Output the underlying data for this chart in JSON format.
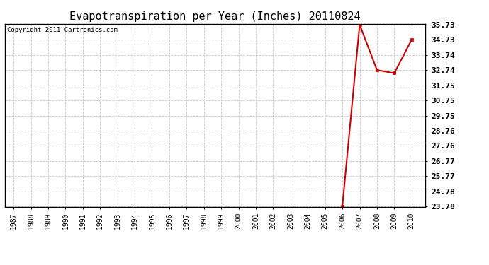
{
  "title": "Evapotranspiration per Year (Inches) 20110824",
  "copyright_text": "Copyright 2011 Cartronics.com",
  "x_years": [
    1987,
    1988,
    1989,
    1990,
    1991,
    1992,
    1993,
    1994,
    1995,
    1996,
    1997,
    1998,
    1999,
    2000,
    2001,
    2002,
    2003,
    2004,
    2005,
    2006,
    2007,
    2008,
    2009,
    2010
  ],
  "y_values": [
    null,
    null,
    null,
    null,
    null,
    null,
    null,
    null,
    null,
    null,
    null,
    null,
    null,
    null,
    null,
    null,
    null,
    null,
    null,
    23.78,
    35.73,
    32.74,
    32.54,
    34.73
  ],
  "yticks": [
    23.78,
    24.78,
    25.77,
    26.77,
    27.76,
    28.76,
    29.75,
    30.75,
    31.75,
    32.74,
    33.74,
    34.73,
    35.73
  ],
  "ymin": 23.78,
  "ymax": 35.73,
  "line_color": "#cc0000",
  "marker_color": "#cc0000",
  "marker_size": 3,
  "background_color": "#ffffff",
  "grid_color": "#c8c8c8",
  "title_fontsize": 11,
  "copyright_fontsize": 6.5,
  "tick_fontsize": 7,
  "ytick_fontsize": 8
}
